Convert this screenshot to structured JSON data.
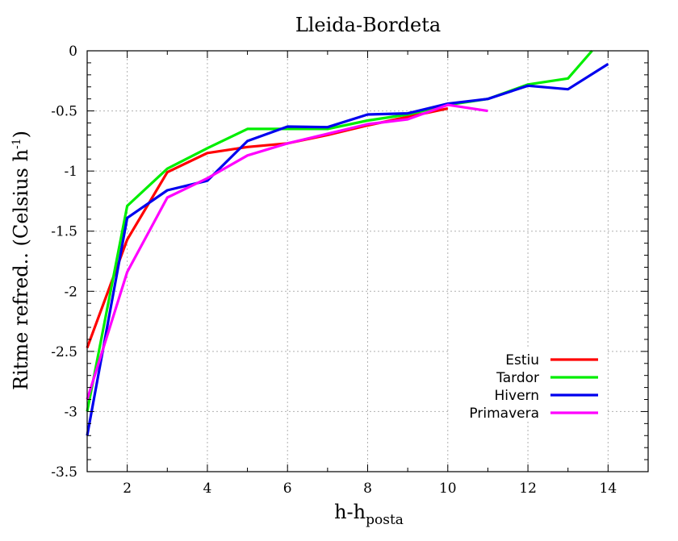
{
  "chart_data": {
    "type": "line",
    "title": "Lleida-Bordeta",
    "xlabel": {
      "main": "h-h",
      "sub": "posta"
    },
    "ylabel": {
      "main": "Ritme refred.. (Celsius h",
      "sup": "-1",
      "end": ")"
    },
    "xlim": [
      1,
      15
    ],
    "ylim": [
      -3.5,
      0
    ],
    "xticks": [
      2,
      4,
      6,
      8,
      10,
      12,
      14
    ],
    "yticks": [
      0,
      -0.5,
      -1,
      -1.5,
      -2,
      -2.5,
      -3,
      -3.5
    ],
    "xtick_labels": [
      "2",
      "4",
      "6",
      "8",
      "10",
      "12",
      "14"
    ],
    "ytick_labels": [
      "0",
      "-0.5",
      "-1",
      "-1.5",
      "-2",
      "-2.5",
      "-3",
      "-3.5"
    ],
    "grid": true,
    "legend_position": "bottom-right",
    "series": [
      {
        "name": "Estiu",
        "color": "#ff0000",
        "x": [
          1,
          2,
          3,
          4,
          5,
          6,
          7,
          8,
          9,
          10
        ],
        "y": [
          -2.47,
          -1.57,
          -1.01,
          -0.85,
          -0.8,
          -0.77,
          -0.7,
          -0.62,
          -0.55,
          -0.48
        ]
      },
      {
        "name": "Tardor",
        "color": "#00ee00",
        "x": [
          1,
          2,
          3,
          4,
          5,
          6,
          7,
          8,
          9,
          10,
          11,
          12,
          13,
          13.6
        ],
        "y": [
          -3.0,
          -1.29,
          -0.98,
          -0.81,
          -0.65,
          -0.65,
          -0.65,
          -0.58,
          -0.53,
          -0.45,
          -0.4,
          -0.28,
          -0.23,
          0.0
        ]
      },
      {
        "name": "Hivern",
        "color": "#0000ee",
        "x": [
          1,
          2,
          3,
          4,
          5,
          6,
          7,
          8,
          9,
          10,
          11,
          12,
          13,
          14
        ],
        "y": [
          -3.2,
          -1.39,
          -1.16,
          -1.08,
          -0.75,
          -0.63,
          -0.635,
          -0.53,
          -0.52,
          -0.44,
          -0.4,
          -0.29,
          -0.32,
          -0.11
        ]
      },
      {
        "name": "Primavera",
        "color": "#ff00ff",
        "x": [
          1,
          2,
          3,
          4,
          5,
          6,
          7,
          8,
          9,
          10,
          11
        ],
        "y": [
          -2.9,
          -1.84,
          -1.22,
          -1.06,
          -0.87,
          -0.77,
          -0.69,
          -0.61,
          -0.57,
          -0.45,
          -0.5
        ]
      }
    ]
  }
}
